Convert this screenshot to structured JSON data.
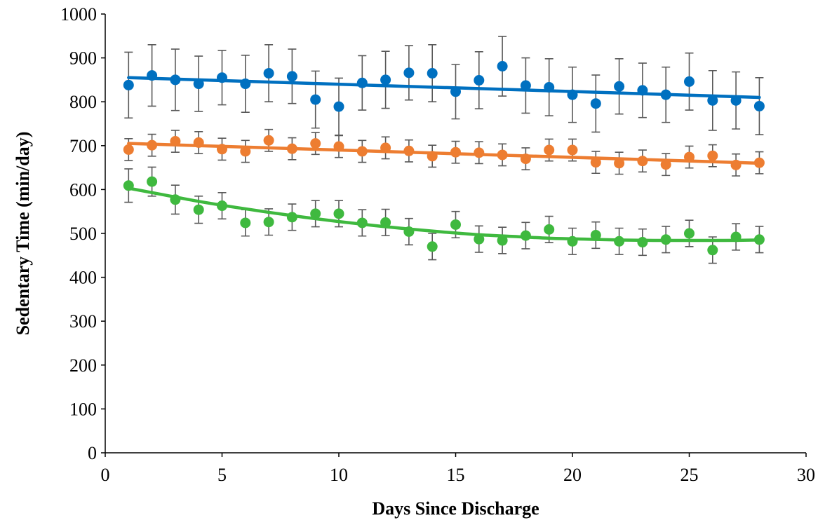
{
  "chart_data": {
    "type": "scatter",
    "title": "",
    "xlabel": "Days Since Discharge",
    "ylabel": "Sedentary Time (min/day)",
    "xlim": [
      0,
      30
    ],
    "ylim": [
      0,
      1000
    ],
    "xticks": [
      0,
      5,
      10,
      15,
      20,
      25,
      30
    ],
    "yticks": [
      0,
      100,
      200,
      300,
      400,
      500,
      600,
      700,
      800,
      900,
      1000
    ],
    "grid": false,
    "legend": "none",
    "x": [
      1,
      2,
      3,
      4,
      5,
      6,
      7,
      8,
      9,
      10,
      11,
      12,
      13,
      14,
      15,
      16,
      17,
      18,
      19,
      20,
      21,
      22,
      23,
      24,
      25,
      26,
      27,
      28
    ],
    "series": [
      {
        "color": "#0070C0",
        "values": [
          838,
          860,
          850,
          841,
          855,
          841,
          865,
          858,
          805,
          789,
          843,
          850,
          866,
          865,
          823,
          849,
          881,
          837,
          833,
          816,
          796,
          835,
          826,
          816,
          846,
          803,
          803,
          790
        ],
        "error": [
          75,
          70,
          70,
          63,
          62,
          65,
          65,
          62,
          65,
          65,
          62,
          65,
          62,
          65,
          62,
          65,
          68,
          63,
          65,
          63,
          65,
          63,
          62,
          63,
          65,
          68,
          65,
          65
        ],
        "trend": [
          855,
          810
        ]
      },
      {
        "color": "#ED7D31",
        "values": [
          691,
          701,
          710,
          707,
          692,
          687,
          712,
          693,
          705,
          698,
          687,
          695,
          688,
          676,
          685,
          684,
          679,
          670,
          690,
          690,
          662,
          660,
          665,
          657,
          674,
          677,
          656,
          661
        ],
        "error": [
          25,
          25,
          25,
          25,
          25,
          25,
          25,
          25,
          25,
          25,
          25,
          25,
          25,
          25,
          25,
          25,
          25,
          25,
          25,
          25,
          25,
          25,
          25,
          25,
          25,
          25,
          25,
          25
        ],
        "trend": [
          705,
          660
        ]
      },
      {
        "color": "#3FB93F",
        "values": [
          609,
          618,
          577,
          554,
          563,
          524,
          526,
          537,
          545,
          545,
          524,
          525,
          504,
          470,
          520,
          487,
          484,
          495,
          509,
          482,
          496,
          482,
          480,
          486,
          500,
          462,
          492,
          486
        ],
        "error": [
          38,
          33,
          33,
          31,
          30,
          30,
          30,
          30,
          30,
          30,
          30,
          30,
          30,
          30,
          30,
          30,
          30,
          30,
          30,
          30,
          30,
          30,
          30,
          30,
          30,
          30,
          30,
          30
        ],
        "trend": [
          603,
          588,
          573,
          560,
          548,
          537,
          527,
          518,
          510,
          503,
          497,
          493,
          489,
          487,
          485,
          484,
          484,
          484,
          485
        ]
      }
    ]
  }
}
